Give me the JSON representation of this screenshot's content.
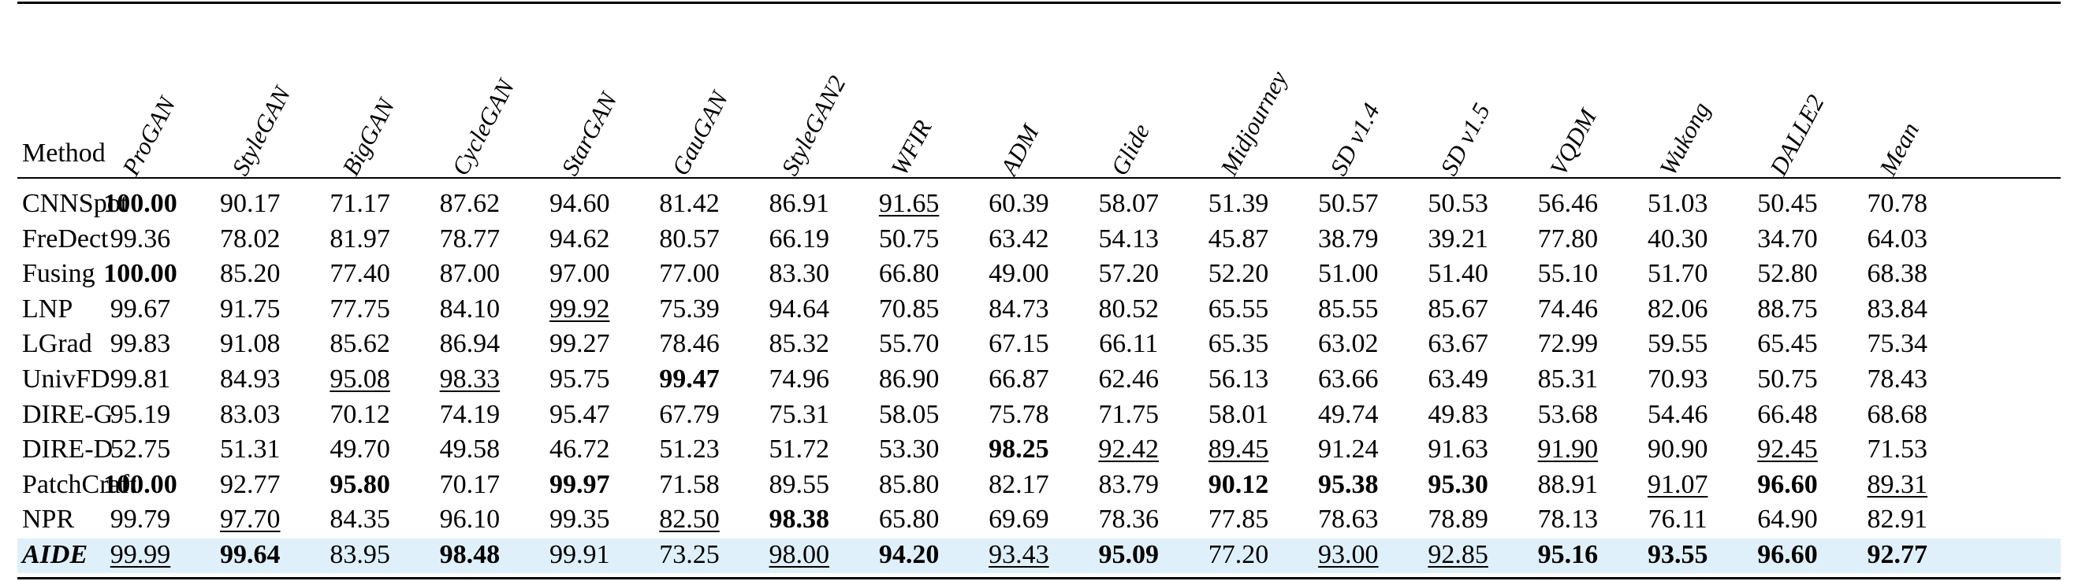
{
  "table": {
    "method_label": "Method",
    "columns": [
      "ProGAN",
      "StyleGAN",
      "BigGAN",
      "CycleGAN",
      "StarGAN",
      "GauGAN",
      "StyleGAN2",
      "WFIR",
      "ADM",
      "Glide",
      "Midjourney",
      "SD v1.4",
      "SD v1.5",
      "VQDM",
      "Wukong",
      "DALLE2",
      "Mean"
    ],
    "rows": [
      {
        "method": "CNNSpot",
        "values": [
          "100.00",
          "90.17",
          "71.17",
          "87.62",
          "94.60",
          "81.42",
          "86.91",
          "91.65",
          "60.39",
          "58.07",
          "51.39",
          "50.57",
          "50.53",
          "56.46",
          "51.03",
          "50.45",
          "70.78"
        ],
        "bold": [
          0
        ],
        "underline": [
          7
        ],
        "highlight": false
      },
      {
        "method": "FreDect",
        "values": [
          "99.36",
          "78.02",
          "81.97",
          "78.77",
          "94.62",
          "80.57",
          "66.19",
          "50.75",
          "63.42",
          "54.13",
          "45.87",
          "38.79",
          "39.21",
          "77.80",
          "40.30",
          "34.70",
          "64.03"
        ],
        "bold": [],
        "underline": [],
        "highlight": false
      },
      {
        "method": "Fusing",
        "values": [
          "100.00",
          "85.20",
          "77.40",
          "87.00",
          "97.00",
          "77.00",
          "83.30",
          "66.80",
          "49.00",
          "57.20",
          "52.20",
          "51.00",
          "51.40",
          "55.10",
          "51.70",
          "52.80",
          "68.38"
        ],
        "bold": [
          0
        ],
        "underline": [],
        "highlight": false
      },
      {
        "method": "LNP",
        "values": [
          "99.67",
          "91.75",
          "77.75",
          "84.10",
          "99.92",
          "75.39",
          "94.64",
          "70.85",
          "84.73",
          "80.52",
          "65.55",
          "85.55",
          "85.67",
          "74.46",
          "82.06",
          "88.75",
          "83.84"
        ],
        "bold": [],
        "underline": [
          4
        ],
        "highlight": false
      },
      {
        "method": "LGrad",
        "values": [
          "99.83",
          "91.08",
          "85.62",
          "86.94",
          "99.27",
          "78.46",
          "85.32",
          "55.70",
          "67.15",
          "66.11",
          "65.35",
          "63.02",
          "63.67",
          "72.99",
          "59.55",
          "65.45",
          "75.34"
        ],
        "bold": [],
        "underline": [],
        "highlight": false
      },
      {
        "method": "UnivFD",
        "values": [
          "99.81",
          "84.93",
          "95.08",
          "98.33",
          "95.75",
          "99.47",
          "74.96",
          "86.90",
          "66.87",
          "62.46",
          "56.13",
          "63.66",
          "63.49",
          "85.31",
          "70.93",
          "50.75",
          "78.43"
        ],
        "bold": [
          5
        ],
        "underline": [
          2,
          3
        ],
        "highlight": false
      },
      {
        "method": "DIRE-G",
        "values": [
          "95.19",
          "83.03",
          "70.12",
          "74.19",
          "95.47",
          "67.79",
          "75.31",
          "58.05",
          "75.78",
          "71.75",
          "58.01",
          "49.74",
          "49.83",
          "53.68",
          "54.46",
          "66.48",
          "68.68"
        ],
        "bold": [],
        "underline": [],
        "highlight": false
      },
      {
        "method": "DIRE-D",
        "values": [
          "52.75",
          "51.31",
          "49.70",
          "49.58",
          "46.72",
          "51.23",
          "51.72",
          "53.30",
          "98.25",
          "92.42",
          "89.45",
          "91.24",
          "91.63",
          "91.90",
          "90.90",
          "92.45",
          "71.53"
        ],
        "bold": [
          8
        ],
        "underline": [
          9,
          10,
          13,
          15
        ],
        "highlight": false
      },
      {
        "method": "PatchCraft",
        "values": [
          "100.00",
          "92.77",
          "95.80",
          "70.17",
          "99.97",
          "71.58",
          "89.55",
          "85.80",
          "82.17",
          "83.79",
          "90.12",
          "95.38",
          "95.30",
          "88.91",
          "91.07",
          "96.60",
          "89.31"
        ],
        "bold": [
          0,
          2,
          4,
          10,
          11,
          12,
          15
        ],
        "underline": [
          14,
          16
        ],
        "highlight": false
      },
      {
        "method": "NPR",
        "values": [
          "99.79",
          "97.70",
          "84.35",
          "96.10",
          "99.35",
          "82.50",
          "98.38",
          "65.80",
          "69.69",
          "78.36",
          "77.85",
          "78.63",
          "78.89",
          "78.13",
          "76.11",
          "64.90",
          "82.91"
        ],
        "bold": [
          6
        ],
        "underline": [
          1,
          5
        ],
        "highlight": false
      },
      {
        "method": "AIDE",
        "values": [
          "99.99",
          "99.64",
          "83.95",
          "98.48",
          "99.91",
          "73.25",
          "98.00",
          "94.20",
          "93.43",
          "95.09",
          "77.20",
          "93.00",
          "92.85",
          "95.16",
          "93.55",
          "96.60",
          "92.77"
        ],
        "bold": [
          1,
          3,
          7,
          9,
          13,
          14,
          15,
          16
        ],
        "underline": [
          0,
          6,
          8,
          11,
          12
        ],
        "highlight": true
      }
    ]
  }
}
